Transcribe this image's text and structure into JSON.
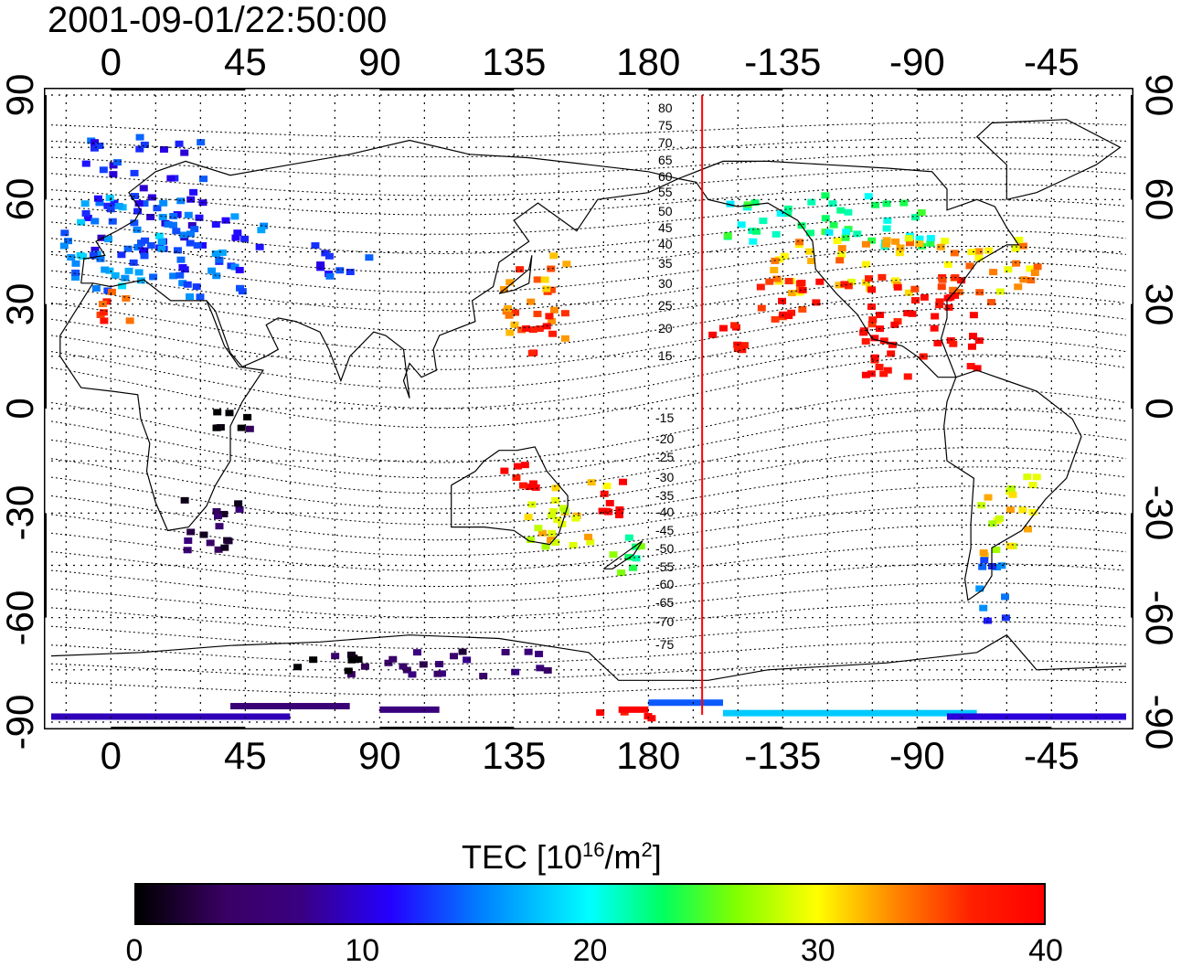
{
  "title": "2001-09-01/22:50:00",
  "x_ticks": [
    "0",
    "45",
    "90",
    "135",
    "180",
    "-135",
    "-90",
    "-45"
  ],
  "y_ticks": [
    "90",
    "60",
    "30",
    "0",
    "-30",
    "-60",
    "-90"
  ],
  "contour_labels_north": [
    "80",
    "75",
    "70",
    "65",
    "60",
    "55",
    "50",
    "45",
    "40",
    "35",
    "30",
    "25",
    "20",
    "15"
  ],
  "contour_labels_south": [
    "-15",
    "-20",
    "-25",
    "-30",
    "-35",
    "-40",
    "-45",
    "-50",
    "-55",
    "-60",
    "-65",
    "-70",
    "-75"
  ],
  "colorbar": {
    "title_main": "TEC  [10",
    "title_sup1": "16",
    "title_mid": "/m",
    "title_sup2": "2",
    "title_end": "]",
    "labels": [
      "0",
      "10",
      "20",
      "30",
      "40"
    ],
    "min": 0,
    "max": 40
  },
  "colors": {
    "terminator_line": "#ff0000",
    "grid": "#000000"
  },
  "map": {
    "lon_range": [
      -20,
      340
    ],
    "lat_range": [
      -90,
      90
    ],
    "terminator_longitude": 198
  },
  "tec_clusters": [
    {
      "lon": 10,
      "lat": 62,
      "tec": 12,
      "w": 20,
      "h": 18
    },
    {
      "lon": 5,
      "lat": 48,
      "tec": 16,
      "w": 22,
      "h": 14
    },
    {
      "lon": 35,
      "lat": 45,
      "tec": 14,
      "w": 15,
      "h": 12
    },
    {
      "lon": 77,
      "lat": 42,
      "tec": 12,
      "w": 10,
      "h": 6
    },
    {
      "lon": 0,
      "lat": 31,
      "tec": 37,
      "w": 5,
      "h": 5
    },
    {
      "lon": 140,
      "lat": 33,
      "tec": 34,
      "w": 12,
      "h": 12
    },
    {
      "lon": 140,
      "lat": 22,
      "tec": 39,
      "w": 8,
      "h": 6
    },
    {
      "lon": 205,
      "lat": 21,
      "tec": 40,
      "w": 6,
      "h": 4
    },
    {
      "lon": 240,
      "lat": 55,
      "tec": 22,
      "w": 35,
      "h": 8
    },
    {
      "lon": 265,
      "lat": 42,
      "tec": 32,
      "w": 45,
      "h": 8
    },
    {
      "lon": 255,
      "lat": 32,
      "tec": 38,
      "w": 40,
      "h": 7
    },
    {
      "lon": 270,
      "lat": 18,
      "tec": 40,
      "w": 20,
      "h": 8
    },
    {
      "lon": 30,
      "lat": -32,
      "tec": 4,
      "w": 12,
      "h": 8
    },
    {
      "lon": 40,
      "lat": -4,
      "tec": 1,
      "w": 6,
      "h": 4
    },
    {
      "lon": 150,
      "lat": -30,
      "tec": 30,
      "w": 15,
      "h": 10
    },
    {
      "lon": 173,
      "lat": -42,
      "tec": 24,
      "w": 8,
      "h": 6
    },
    {
      "lon": 168,
      "lat": -25,
      "tec": 40,
      "w": 5,
      "h": 5
    },
    {
      "lon": 135,
      "lat": -18,
      "tec": 40,
      "w": 6,
      "h": 4
    },
    {
      "lon": 300,
      "lat": -30,
      "tec": 30,
      "w": 10,
      "h": 12
    },
    {
      "lon": 295,
      "lat": -50,
      "tec": 14,
      "w": 6,
      "h": 10
    },
    {
      "lon": 80,
      "lat": -72,
      "tec": 2,
      "w": 20,
      "h": 4
    },
    {
      "lon": 120,
      "lat": -72,
      "tec": 5,
      "w": 25,
      "h": 4
    },
    {
      "lon": 170,
      "lat": -88,
      "tec": 40,
      "w": 10,
      "h": 2
    }
  ]
}
